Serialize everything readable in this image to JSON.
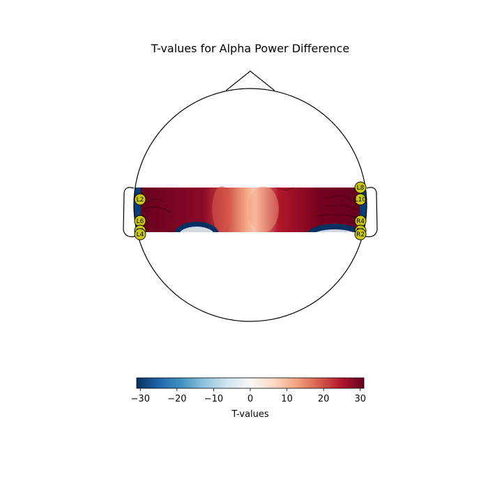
{
  "chart_data": {
    "type": "heatmap",
    "title": "T-values for Alpha Power Difference",
    "colorbar": {
      "label": "T-values",
      "vmin": -31,
      "vmax": 31,
      "ticks": [
        -30,
        -20,
        -10,
        0,
        10,
        20,
        30
      ],
      "tick_labels": [
        "−30",
        "−20",
        "−10",
        "0",
        "10",
        "20",
        "30"
      ],
      "colormap": "RdBu_r"
    },
    "sensors": [
      {
        "name": "L2",
        "side": "left",
        "row": 1
      },
      {
        "name": "L6",
        "side": "left",
        "row": 2
      },
      {
        "name": "L5",
        "side": "left",
        "row": 3
      },
      {
        "name": "L4",
        "side": "left",
        "row": 4
      },
      {
        "name": "L8",
        "side": "right",
        "row": 0
      },
      {
        "name": "L10",
        "side": "right",
        "row": 1
      },
      {
        "name": "R4",
        "side": "right",
        "row": 2
      },
      {
        "name": "R1",
        "side": "right",
        "row": 3
      },
      {
        "name": "R2",
        "side": "right",
        "row": 4
      }
    ],
    "sensor_label_shown": [
      "L2",
      "L6",
      "L5",
      "L4",
      "L8",
      "L10",
      "R4",
      "R1",
      "R2"
    ]
  }
}
